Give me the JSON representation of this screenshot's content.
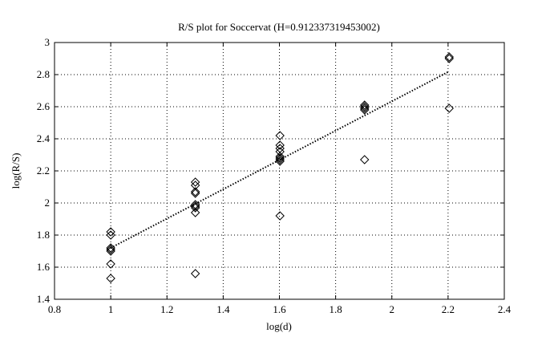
{
  "chart_data": {
    "type": "scatter",
    "title": "R/S plot for Soccervat (H=0.912337319453002)",
    "xlabel": "log(d)",
    "ylabel": "log(R/S)",
    "xlim": [
      0.8,
      2.4
    ],
    "ylim": [
      1.4,
      3.0
    ],
    "xticks": [
      0.8,
      1,
      1.2,
      1.4,
      1.6,
      1.8,
      2,
      2.2,
      2.4
    ],
    "xtick_labels": [
      "0.8",
      "1",
      "1.2",
      "1.4",
      "1.6",
      "1.8",
      "2",
      "2.2",
      "2.4"
    ],
    "yticks": [
      1.4,
      1.6,
      1.8,
      2.0,
      2.2,
      2.4,
      2.6,
      2.8,
      3.0
    ],
    "ytick_labels": [
      "1.4",
      "1.6",
      "1.8",
      "2",
      "2.2",
      "2.4",
      "2.6",
      "2.8",
      "3"
    ],
    "grid": true,
    "marker": "diamond",
    "series": [
      {
        "points": [
          [
            1.0,
            1.82
          ],
          [
            1.0,
            1.8
          ],
          [
            1.0,
            1.72
          ],
          [
            1.0,
            1.71
          ],
          [
            1.0,
            1.7
          ],
          [
            1.0,
            1.62
          ],
          [
            1.0,
            1.53
          ],
          [
            1.301,
            2.13
          ],
          [
            1.301,
            2.11
          ],
          [
            1.301,
            2.07
          ],
          [
            1.301,
            2.06
          ],
          [
            1.301,
            1.99
          ],
          [
            1.301,
            1.98
          ],
          [
            1.301,
            1.97
          ],
          [
            1.301,
            1.94
          ],
          [
            1.301,
            1.56
          ],
          [
            1.602,
            2.42
          ],
          [
            1.602,
            2.36
          ],
          [
            1.602,
            2.34
          ],
          [
            1.602,
            2.32
          ],
          [
            1.602,
            2.29
          ],
          [
            1.602,
            2.28
          ],
          [
            1.602,
            2.27
          ],
          [
            1.602,
            2.26
          ],
          [
            1.602,
            1.92
          ],
          [
            1.903,
            2.61
          ],
          [
            1.903,
            2.6
          ],
          [
            1.903,
            2.59
          ],
          [
            1.903,
            2.58
          ],
          [
            1.903,
            2.27
          ],
          [
            2.204,
            2.91
          ],
          [
            2.204,
            2.9
          ],
          [
            2.204,
            2.59
          ]
        ]
      }
    ],
    "fit_line": {
      "x": [
        1.0,
        2.204
      ],
      "y": [
        1.72,
        2.82
      ],
      "style": "dotted"
    }
  }
}
